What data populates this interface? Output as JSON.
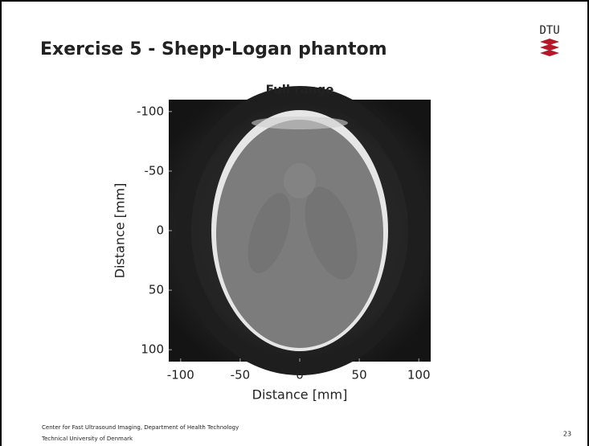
{
  "header": {
    "title": "Exercise 5 - Shepp-Logan phantom",
    "logo": "DTU"
  },
  "figure": {
    "title": "Full range",
    "xlabel": "Distance [mm]",
    "ylabel": "Distance [mm]",
    "xlim": [
      -110,
      110
    ],
    "ylim": [
      -110,
      110
    ],
    "xticks": [
      -100,
      -50,
      0,
      50,
      100
    ],
    "yticks": [
      -100,
      -50,
      0,
      50,
      100
    ]
  },
  "footer": {
    "lines": [
      "Center for Fast Ultrasound Imaging, Department of Health Technology",
      "Technical University of Denmark"
    ],
    "page": "23"
  }
}
